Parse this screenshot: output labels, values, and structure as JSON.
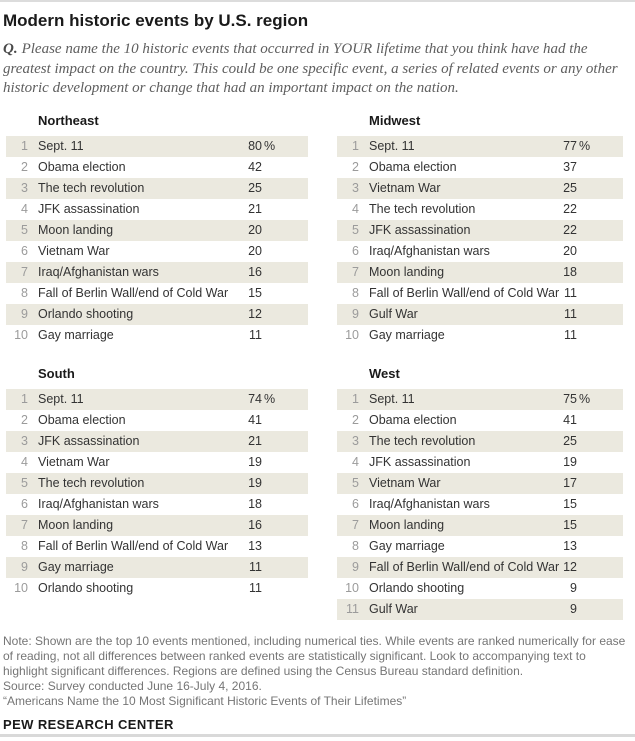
{
  "title": "Modern historic events by U.S. region",
  "question": {
    "label": "Q.",
    "text": "Please name the 10 historic events that occurred in YOUR lifetime that you think have had the greatest impact on the country. This could be one specific event, a series of related events or any other historic development or change that had an important impact on the nation."
  },
  "footer": {
    "note": "Note: Shown are the top 10 events mentioned, including numerical ties. While events are ranked numerically for ease of reading, not all differences between ranked events are statistically significant. Look to accompanying text to highlight significant differences. Regions are defined using the Census Bureau standard definition.",
    "source": "Source: Survey conducted June 16-July 4, 2016.",
    "quote": "“Americans Name the 10 Most Significant Historic Events of Their Lifetimes”",
    "branding": "PEW RESEARCH CENTER"
  },
  "colors": {
    "row_shade": "#ebe9df",
    "rank_gray": "#9b9b9b",
    "text_dark": "#333333",
    "note_gray": "#757575",
    "rule_gray": "#d9d9d9"
  },
  "chart_data": {
    "type": "table",
    "title": "Modern historic events by U.S. region",
    "value_unit": "% of respondents (shown on rank 1 rows)",
    "layout": "2x2 grid of ranked tables, odd rows shaded",
    "tables": [
      {
        "region": "Northeast",
        "rows": [
          {
            "rank": 1,
            "event": "Sept. 11",
            "value": 80,
            "unit": "%"
          },
          {
            "rank": 2,
            "event": "Obama election",
            "value": 42
          },
          {
            "rank": 3,
            "event": "The tech revolution",
            "value": 25
          },
          {
            "rank": 4,
            "event": "JFK assassination",
            "value": 21
          },
          {
            "rank": 5,
            "event": "Moon landing",
            "value": 20
          },
          {
            "rank": 6,
            "event": "Vietnam War",
            "value": 20
          },
          {
            "rank": 7,
            "event": "Iraq/Afghanistan wars",
            "value": 16
          },
          {
            "rank": 8,
            "event": "Fall of Berlin Wall/end of Cold War",
            "value": 15
          },
          {
            "rank": 9,
            "event": "Orlando shooting",
            "value": 12
          },
          {
            "rank": 10,
            "event": "Gay marriage",
            "value": 11
          }
        ]
      },
      {
        "region": "Midwest",
        "rows": [
          {
            "rank": 1,
            "event": "Sept. 11",
            "value": 77,
            "unit": "%"
          },
          {
            "rank": 2,
            "event": "Obama election",
            "value": 37
          },
          {
            "rank": 3,
            "event": "Vietnam War",
            "value": 25
          },
          {
            "rank": 4,
            "event": "The tech revolution",
            "value": 22
          },
          {
            "rank": 5,
            "event": "JFK assassination",
            "value": 22
          },
          {
            "rank": 6,
            "event": "Iraq/Afghanistan wars",
            "value": 20
          },
          {
            "rank": 7,
            "event": "Moon landing",
            "value": 18
          },
          {
            "rank": 8,
            "event": "Fall of Berlin Wall/end of Cold War",
            "value": 11
          },
          {
            "rank": 9,
            "event": "Gulf War",
            "value": 11
          },
          {
            "rank": 10,
            "event": "Gay marriage",
            "value": 11
          }
        ]
      },
      {
        "region": "South",
        "rows": [
          {
            "rank": 1,
            "event": "Sept. 11",
            "value": 74,
            "unit": "%"
          },
          {
            "rank": 2,
            "event": "Obama election",
            "value": 41
          },
          {
            "rank": 3,
            "event": "JFK assassination",
            "value": 21
          },
          {
            "rank": 4,
            "event": "Vietnam War",
            "value": 19
          },
          {
            "rank": 5,
            "event": "The tech revolution",
            "value": 19
          },
          {
            "rank": 6,
            "event": "Iraq/Afghanistan wars",
            "value": 18
          },
          {
            "rank": 7,
            "event": "Moon landing",
            "value": 16
          },
          {
            "rank": 8,
            "event": "Fall of Berlin Wall/end of Cold War",
            "value": 13
          },
          {
            "rank": 9,
            "event": "Gay marriage",
            "value": 11
          },
          {
            "rank": 10,
            "event": "Orlando shooting",
            "value": 11
          }
        ]
      },
      {
        "region": "West",
        "rows": [
          {
            "rank": 1,
            "event": "Sept. 11",
            "value": 75,
            "unit": "%"
          },
          {
            "rank": 2,
            "event": "Obama election",
            "value": 41
          },
          {
            "rank": 3,
            "event": "The tech revolution",
            "value": 25
          },
          {
            "rank": 4,
            "event": "JFK assassination",
            "value": 19
          },
          {
            "rank": 5,
            "event": "Vietnam War",
            "value": 17
          },
          {
            "rank": 6,
            "event": "Iraq/Afghanistan wars",
            "value": 15
          },
          {
            "rank": 7,
            "event": "Moon landing",
            "value": 15
          },
          {
            "rank": 8,
            "event": "Gay marriage",
            "value": 13
          },
          {
            "rank": 9,
            "event": "Fall of Berlin Wall/end of Cold War",
            "value": 12
          },
          {
            "rank": 10,
            "event": "Orlando shooting",
            "value": 9
          },
          {
            "rank": 11,
            "event": "Gulf War",
            "value": 9
          }
        ]
      }
    ]
  }
}
